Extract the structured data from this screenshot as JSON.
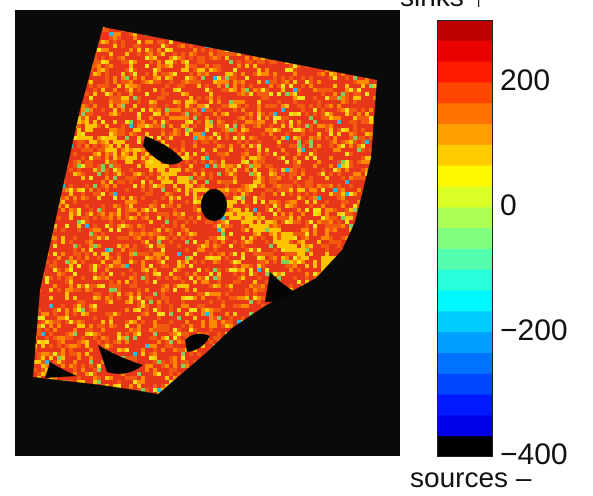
{
  "chart_data": {
    "type": "heatmap",
    "title": "",
    "xlabel": "",
    "ylabel": "",
    "colorbar": {
      "top_label": "sinks ↑",
      "bottom_label": "sources –",
      "range": [
        -400,
        300
      ],
      "ticks": [
        {
          "value": 200,
          "label": "200"
        },
        {
          "value": 0,
          "label": "0"
        },
        {
          "value": -200,
          "label": "−200"
        },
        {
          "value": -400,
          "label": "−400"
        }
      ],
      "levels": 21,
      "colormap": "jet",
      "low_color": "#000000"
    },
    "map": {
      "background": "#0a0a0a",
      "dominant_range": [
        100,
        300
      ],
      "description_colors": [
        "#e8361a",
        "#f25a10",
        "#ff8a00",
        "#ffc400",
        "#f2e21a",
        "#80d060",
        "#2bb8e0"
      ]
    }
  }
}
